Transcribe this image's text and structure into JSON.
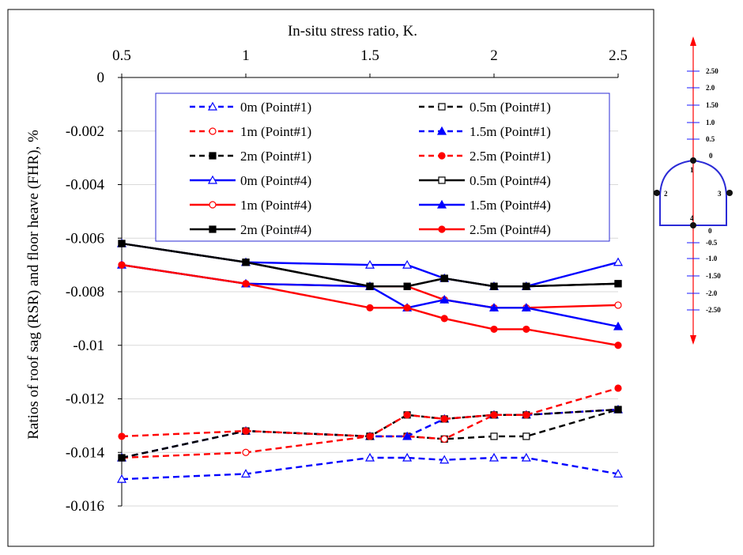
{
  "chart_data": {
    "type": "line",
    "title": "",
    "xlabel": "In-situ stress ratio, K.",
    "ylabel": "Ratios of roof sag (RSR) and floor heave (FHR), %",
    "xlim": [
      0.5,
      2.5
    ],
    "ylim": [
      -0.016,
      0
    ],
    "x_ticks": [
      "0.5",
      "1",
      "1.5",
      "2",
      "2.5"
    ],
    "y_ticks": [
      "0",
      "-0.002",
      "-0.004",
      "-0.006",
      "-0.008",
      "-0.01",
      "-0.012",
      "-0.014",
      "-0.016"
    ],
    "x": [
      0.5,
      1.0,
      1.5,
      1.65,
      1.8,
      2.0,
      2.13,
      2.5
    ],
    "grid": true,
    "legend_position": "top",
    "series": [
      {
        "name": "0m (Point#1)",
        "color": "#0000ff",
        "dash": true,
        "marker": "triangle-open",
        "values": [
          -0.015,
          -0.0148,
          -0.0142,
          -0.0142,
          -0.01428,
          -0.0142,
          -0.0142,
          -0.0148
        ]
      },
      {
        "name": "0.5m (Point#1)",
        "color": "#000000",
        "dash": true,
        "marker": "square-open",
        "values": [
          -0.0142,
          -0.0132,
          -0.0134,
          -0.0134,
          -0.0135,
          -0.0134,
          -0.0134,
          -0.0124
        ]
      },
      {
        "name": "1m (Point#1)",
        "color": "#ff0000",
        "dash": true,
        "marker": "circle-open",
        "values": [
          -0.0142,
          -0.014,
          -0.0134,
          -0.0134,
          -0.0135,
          -0.0126,
          -0.0126,
          -0.0124
        ]
      },
      {
        "name": "1.5m (Point#1)",
        "color": "#0000ff",
        "dash": true,
        "marker": "triangle",
        "values": [
          -0.0142,
          -0.0132,
          -0.0134,
          -0.0134,
          -0.01275,
          -0.0126,
          -0.0126,
          -0.0124
        ]
      },
      {
        "name": "2m (Point#1)",
        "color": "#000000",
        "dash": true,
        "marker": "square",
        "values": [
          -0.0142,
          -0.0132,
          -0.0134,
          -0.0126,
          -0.01275,
          -0.0126,
          -0.0126,
          -0.0124
        ]
      },
      {
        "name": "2.5m (Point#1)",
        "color": "#ff0000",
        "dash": true,
        "marker": "circle",
        "values": [
          -0.0134,
          -0.0132,
          -0.0134,
          -0.0126,
          -0.01275,
          -0.0126,
          -0.0126,
          -0.0116
        ]
      },
      {
        "name": "0m (Point#4)",
        "color": "#0000ff",
        "dash": false,
        "marker": "triangle-open",
        "values": [
          -0.0062,
          -0.0069,
          -0.007,
          -0.007,
          -0.0075,
          -0.0078,
          -0.0078,
          -0.0069
        ]
      },
      {
        "name": "0.5m (Point#4)",
        "color": "#000000",
        "dash": false,
        "marker": "square-open",
        "values": [
          -0.0062,
          -0.0069,
          -0.0078,
          -0.0078,
          -0.0075,
          -0.0078,
          -0.0078,
          -0.0077
        ]
      },
      {
        "name": "1m (Point#4)",
        "color": "#ff0000",
        "dash": false,
        "marker": "circle-open",
        "values": [
          -0.007,
          -0.0077,
          -0.0078,
          -0.0078,
          -0.0083,
          -0.0086,
          -0.0086,
          -0.0085
        ]
      },
      {
        "name": "1.5m (Point#4)",
        "color": "#0000ff",
        "dash": false,
        "marker": "triangle",
        "values": [
          -0.007,
          -0.0077,
          -0.0078,
          -0.0086,
          -0.0083,
          -0.0086,
          -0.0086,
          -0.0093
        ]
      },
      {
        "name": "2m (Point#4)",
        "color": "#000000",
        "dash": false,
        "marker": "square",
        "values": [
          -0.0062,
          -0.0069,
          -0.0078,
          -0.0078,
          -0.0075,
          -0.0078,
          -0.0078,
          -0.0077
        ]
      },
      {
        "name": "2.5m (Point#4)",
        "color": "#ff0000",
        "dash": false,
        "marker": "circle",
        "values": [
          -0.007,
          -0.0077,
          -0.0086,
          -0.0086,
          -0.009,
          -0.0094,
          -0.0094,
          -0.01
        ]
      }
    ]
  },
  "diagram": {
    "scale_labels": [
      "2.50",
      "2.0",
      "1.50",
      "1.0",
      "0.5",
      "0",
      "0",
      "-0.5",
      "-1.0",
      "-1.50",
      "-2.0",
      "-2.50"
    ],
    "point_labels": [
      "1",
      "2",
      "3",
      "4"
    ],
    "axis_color": "#ff0000",
    "tick_color": "#1a1aff"
  }
}
